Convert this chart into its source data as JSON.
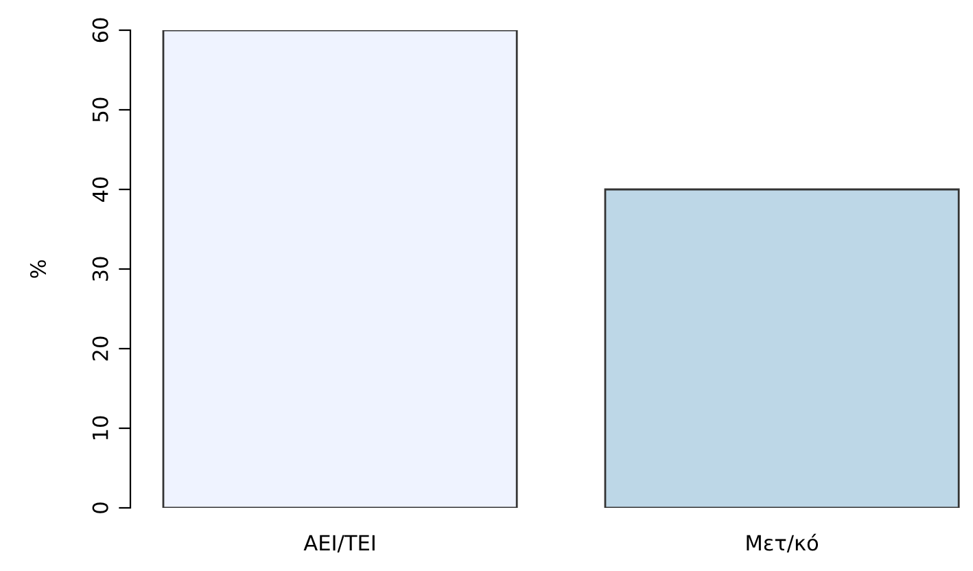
{
  "chart_data": {
    "type": "bar",
    "ylabel": "%",
    "categories": [
      "ΑΕΙ/ΤΕΙ",
      "Μετ/κό"
    ],
    "values": [
      60,
      40
    ],
    "colors": [
      "#eff3ff",
      "#bdd7e7"
    ],
    "ylim": [
      0,
      60
    ],
    "yticks": [
      0,
      10,
      20,
      30,
      40,
      50,
      60
    ],
    "grid": false,
    "legend": false
  }
}
